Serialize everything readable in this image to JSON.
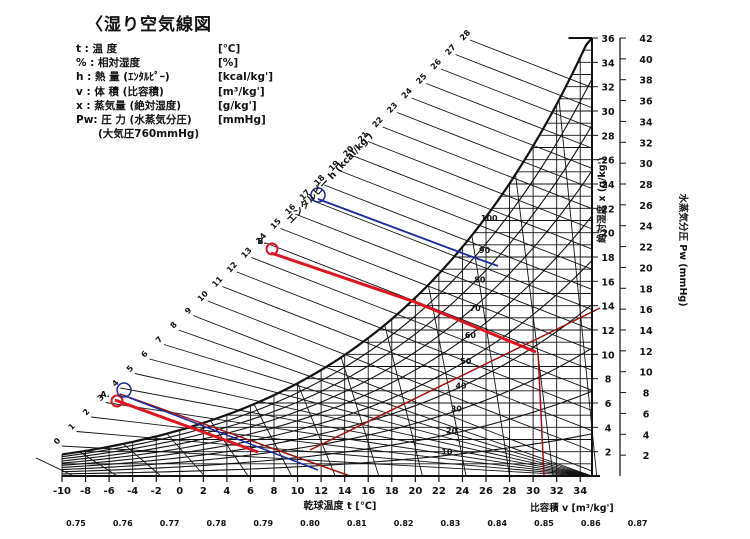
{
  "chart_data": {
    "type": "psychrometric",
    "title": "〈湿り空気線図",
    "legend": [
      {
        "symbol": "t : 温 度",
        "unit": "[℃]"
      },
      {
        "symbol": "% : 相対湿度",
        "unit": "[%]"
      },
      {
        "symbol": "h : 熱 量 (ｴﾝﾀﾙﾋﾟｰ)",
        "unit": "[kcal/kg']"
      },
      {
        "symbol": "v : 体 積 (比容積)",
        "unit": "[m³/kg']"
      },
      {
        "symbol": "x : 蒸気量 (絶対湿度)",
        "unit": "[g/kg']"
      },
      {
        "symbol": "Pw: 圧 力 (水蒸気分圧)",
        "unit": "[mmHg]"
      }
    ],
    "pressure_note": "(大気圧760mmHg)",
    "xlabel": "乾球温度 t [℃]",
    "specific_volume_label": "比容積 v [m³/kg']",
    "enthalpy_label": "エンタルピー h (kcal/kg')",
    "abs_humidity_label": "絶対湿度 x (g/kg')",
    "vapor_pressure_label": "水蒸気分圧 Pw (mmHg)",
    "x_ticks": [
      -10,
      -8,
      -6,
      -4,
      -2,
      0,
      2,
      4,
      6,
      8,
      10,
      12,
      14,
      16,
      18,
      20,
      22,
      24,
      26,
      28,
      30,
      32,
      34
    ],
    "xlim": [
      -10,
      35
    ],
    "abs_humidity_ticks": [
      2,
      4,
      6,
      8,
      10,
      12,
      14,
      16,
      18,
      20,
      22,
      24,
      26,
      28,
      30,
      32,
      34,
      36
    ],
    "vapor_pressure_ticks": [
      2,
      4,
      6,
      8,
      10,
      12,
      14,
      16,
      18,
      20,
      22,
      24,
      26,
      28,
      30,
      32,
      34,
      36,
      38,
      40,
      42
    ],
    "ylim": [
      0,
      36
    ],
    "specific_volume_ticks": [
      "0.75",
      "0.76",
      "0.77",
      "0.78",
      "0.79",
      "0.80",
      "0.81",
      "0.82",
      "0.83",
      "0.84",
      "0.85",
      "0.86",
      "0.87"
    ],
    "enthalpy_ticks": [
      0,
      1,
      2,
      3,
      4,
      5,
      6,
      7,
      8,
      9,
      10,
      11,
      12,
      13,
      14,
      15,
      16,
      17,
      18,
      19,
      20,
      21,
      22,
      23,
      24,
      25,
      26,
      27,
      28
    ],
    "rh_curve_labels": [
      "10",
      "20",
      "30",
      "40",
      "50",
      "60",
      "70",
      "80",
      "90",
      "100"
    ],
    "points": [
      {
        "label": "A.",
        "enthalpy": 2.4,
        "circled_enthalpy": 3.0
      },
      {
        "label": "B.",
        "enthalpy": 13.5,
        "circled_enthalpy": 17.0
      }
    ],
    "grid": true,
    "colors": {
      "ink": "#111111",
      "red": "#e0141e",
      "blue": "#1a2aa0",
      "dark_red": "#a01010"
    }
  }
}
